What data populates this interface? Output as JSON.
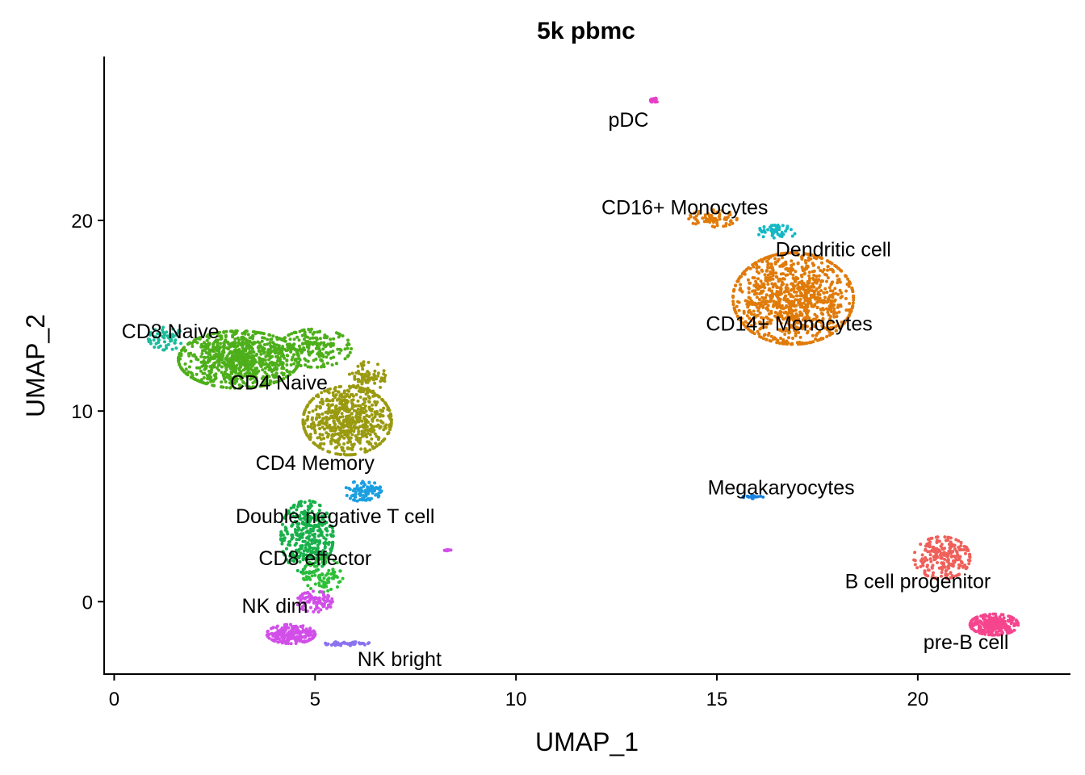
{
  "chart_data": {
    "type": "scatter",
    "title": "5k pbmc",
    "xlabel": "UMAP_1",
    "ylabel": "UMAP_2",
    "xlim": [
      -0.25,
      23.8
    ],
    "ylim": [
      -3.8,
      28.6
    ],
    "xticks": [
      0,
      5,
      10,
      15,
      20
    ],
    "yticks": [
      0,
      10,
      20
    ],
    "grid": false,
    "legend": "none",
    "clusters": [
      {
        "label": "CD8 Naive",
        "color": "#1abc9c",
        "label_x": 1.4,
        "label_y": 14.2,
        "blobs": [
          {
            "cx": 1.3,
            "cy": 13.8,
            "rx": 0.45,
            "ry": 0.6,
            "n": 60
          }
        ]
      },
      {
        "label": "CD4 Naive",
        "color": "#4daf1a",
        "label_x": 4.1,
        "label_y": 11.5,
        "blobs": [
          {
            "cx": 3.1,
            "cy": 12.7,
            "rx": 1.5,
            "ry": 1.5,
            "n": 900
          },
          {
            "cx": 5.0,
            "cy": 13.3,
            "rx": 0.9,
            "ry": 1.0,
            "n": 200
          }
        ]
      },
      {
        "label": "CD4 Memory",
        "color": "#9a9a10",
        "label_x": 5.0,
        "label_y": 7.3,
        "blobs": [
          {
            "cx": 5.8,
            "cy": 9.5,
            "rx": 1.1,
            "ry": 1.8,
            "n": 650
          },
          {
            "cx": 6.3,
            "cy": 11.8,
            "rx": 0.45,
            "ry": 0.8,
            "n": 80
          }
        ]
      },
      {
        "label": "Dendritic cell",
        "color": "#1b9fe0",
        "label_x": 17.9,
        "label_y": 18.5,
        "blobs": [
          {
            "cx": 6.2,
            "cy": 5.8,
            "rx": 0.45,
            "ry": 0.55,
            "n": 90
          }
        ]
      },
      {
        "label": "Double negative T cell",
        "color": "#18b04a",
        "label_x": 5.5,
        "label_y": 4.5,
        "blobs": [
          {
            "cx": 4.8,
            "cy": 3.4,
            "rx": 0.65,
            "ry": 1.9,
            "n": 380
          }
        ]
      },
      {
        "label": "CD8 effector",
        "color": "#2fbf38",
        "label_x": 5.0,
        "label_y": 2.3,
        "blobs": [
          {
            "cx": 5.2,
            "cy": 1.4,
            "rx": 0.5,
            "ry": 0.9,
            "n": 90
          }
        ]
      },
      {
        "label": "NK dim",
        "color": "#d14fe8",
        "label_x": 4.0,
        "label_y": -0.2,
        "blobs": [
          {
            "cx": 4.4,
            "cy": -1.7,
            "rx": 0.6,
            "ry": 0.5,
            "n": 200
          },
          {
            "cx": 5.0,
            "cy": 0.0,
            "rx": 0.45,
            "ry": 0.55,
            "n": 90
          },
          {
            "cx": 8.3,
            "cy": 2.7,
            "rx": 0.08,
            "ry": 0.05,
            "n": 8
          }
        ]
      },
      {
        "label": "NK bright",
        "color": "#8b72f0",
        "label_x": 7.1,
        "label_y": -3.0,
        "blobs": [
          {
            "cx": 5.8,
            "cy": -2.2,
            "rx": 0.6,
            "ry": 0.1,
            "n": 45
          }
        ]
      },
      {
        "label": "pDC",
        "color": "#e83fc7",
        "label_x": 12.8,
        "label_y": 25.3,
        "blobs": [
          {
            "cx": 13.45,
            "cy": 26.3,
            "rx": 0.1,
            "ry": 0.12,
            "n": 20
          }
        ]
      },
      {
        "label": "CD16+ Monocytes",
        "color": "#14b8c4",
        "label_x": 14.2,
        "label_y": 20.7,
        "blobs": [
          {
            "cx": 16.5,
            "cy": 19.4,
            "rx": 0.5,
            "ry": 0.35,
            "n": 50
          }
        ]
      },
      {
        "label": "CD14+ Monocytes",
        "color": "#e07b0a",
        "label_x": 16.8,
        "label_y": 14.6,
        "blobs": [
          {
            "cx": 16.9,
            "cy": 15.9,
            "rx": 1.5,
            "ry": 2.4,
            "n": 1000
          },
          {
            "cx": 14.9,
            "cy": 20.1,
            "rx": 0.6,
            "ry": 0.45,
            "n": 70
          }
        ]
      },
      {
        "label": "Megakaryocytes",
        "color": "#1a82e0",
        "label_x": 16.6,
        "label_y": 6.0,
        "blobs": [
          {
            "cx": 15.9,
            "cy": 5.5,
            "rx": 0.25,
            "ry": 0.1,
            "n": 18
          }
        ]
      },
      {
        "label": "B cell progenitor",
        "color": "#f0605a",
        "label_x": 20.0,
        "label_y": 1.1,
        "blobs": [
          {
            "cx": 20.6,
            "cy": 2.3,
            "rx": 0.7,
            "ry": 1.1,
            "n": 240
          }
        ]
      },
      {
        "label": "pre-B cell",
        "color": "#f5458d",
        "label_x": 21.2,
        "label_y": -2.1,
        "blobs": [
          {
            "cx": 21.9,
            "cy": -1.2,
            "rx": 0.6,
            "ry": 0.55,
            "n": 260
          }
        ]
      }
    ]
  }
}
